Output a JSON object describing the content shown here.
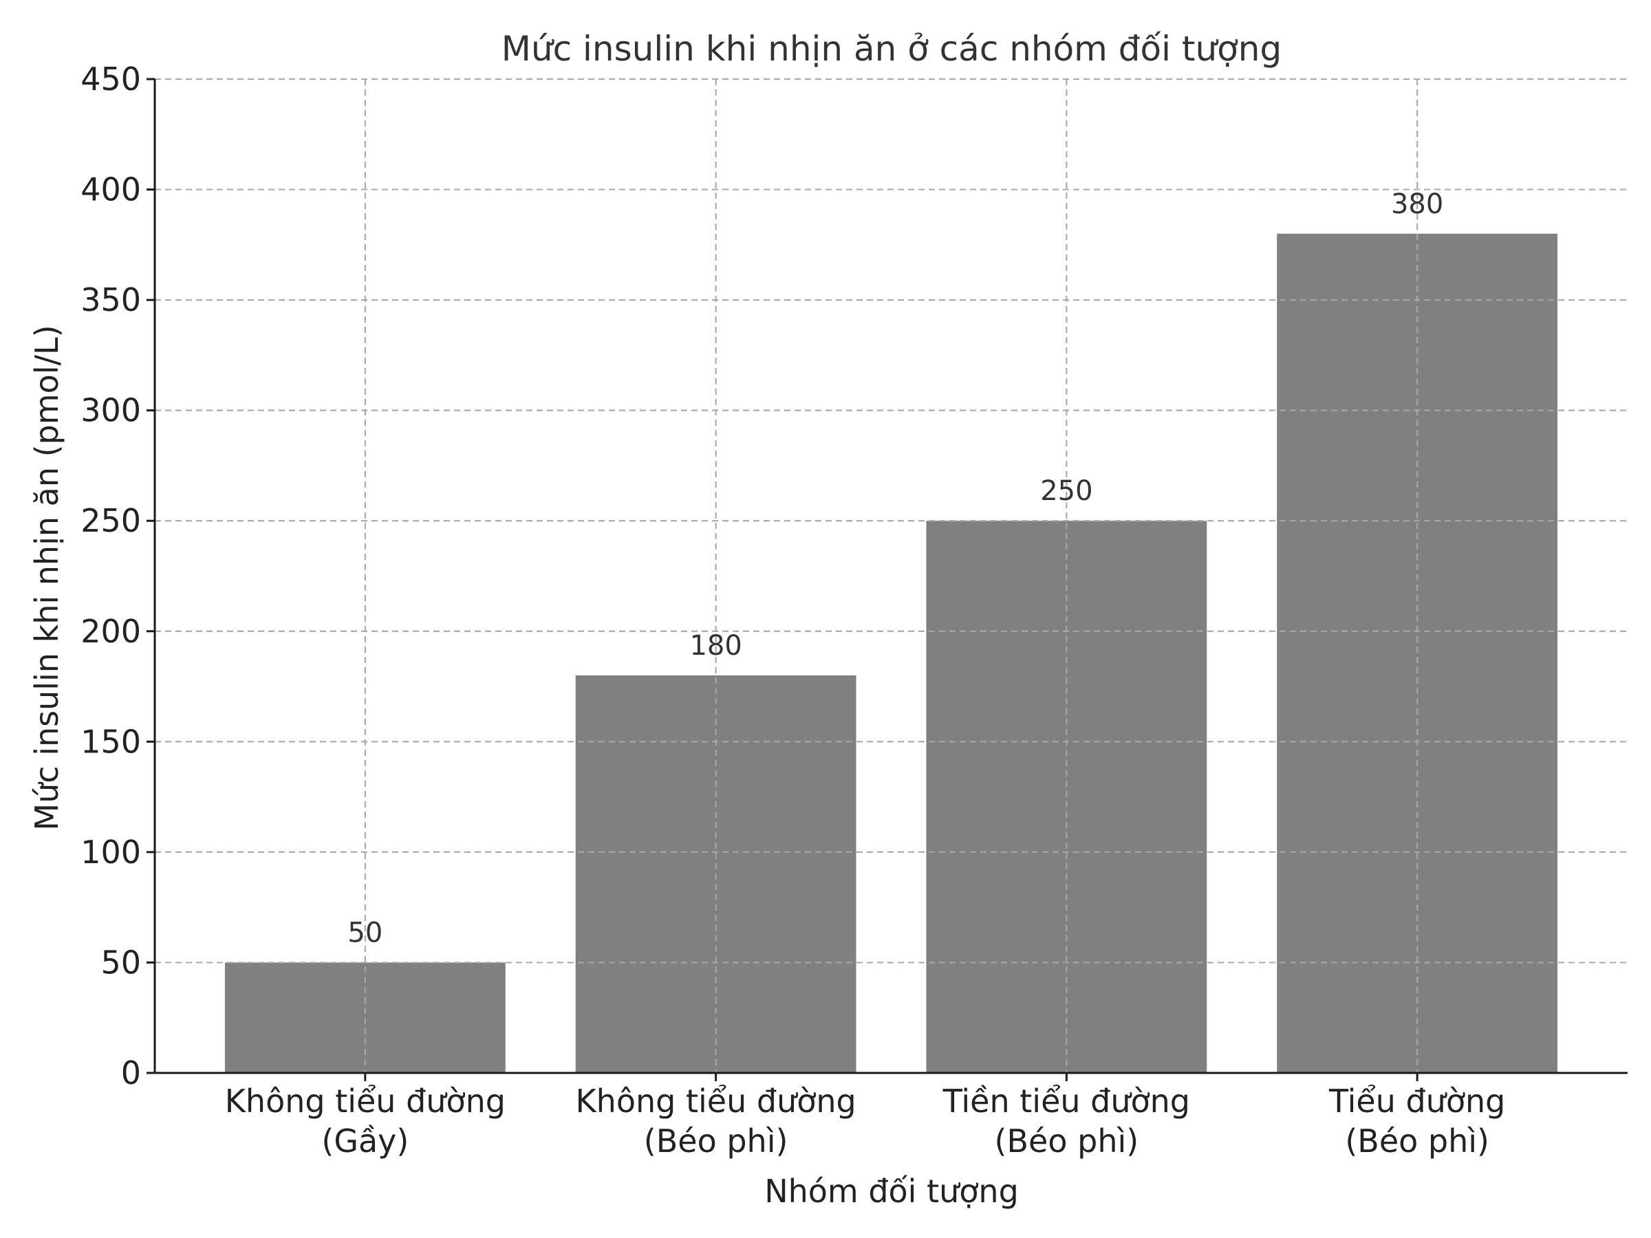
{
  "chart_data": {
    "type": "bar",
    "title": "Mức insulin khi nhịn ăn ở các nhóm đối tượng",
    "xlabel": "Nhóm đối tượng",
    "ylabel": "Mức insulin khi nhịn ăn (pmol/L)",
    "categories": [
      [
        "Không tiểu đường",
        "(Gầy)"
      ],
      [
        "Không tiểu đường",
        "(Béo phì)"
      ],
      [
        "Tiền tiểu đường",
        "(Béo phì)"
      ],
      [
        "Tiểu đường",
        "(Béo phì)"
      ]
    ],
    "values": [
      50,
      180,
      250,
      380
    ],
    "data_labels": [
      "50",
      "180",
      "250",
      "380"
    ],
    "ylim": [
      0,
      450
    ],
    "yticks": [
      0,
      50,
      100,
      150,
      200,
      250,
      300,
      350,
      400,
      450
    ],
    "grid": true,
    "legend": "none",
    "bar_color": "#808080"
  }
}
